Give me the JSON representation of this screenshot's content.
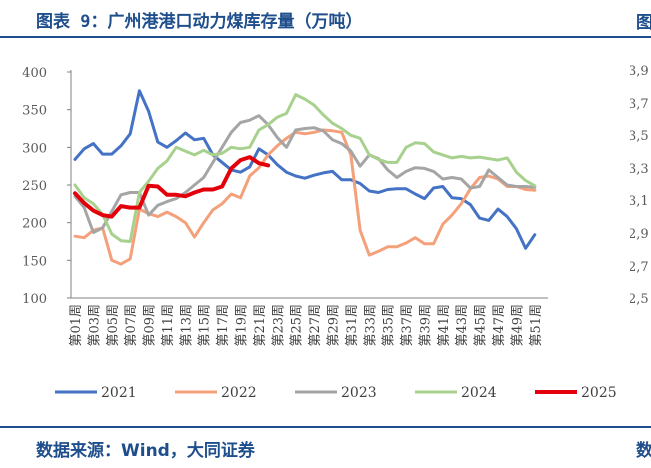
{
  "page": {
    "title": "图表 9：广州港港口动力煤库存量（万吨）",
    "source": "数据来源：Wind，大同证券"
  },
  "right_panel": {
    "title_fragment": "图",
    "source_fragment": "数",
    "ticks": [
      "3,9",
      "3,7",
      "3,5",
      "3,3",
      "3,1",
      "2,9",
      "2,7",
      "2,5"
    ]
  },
  "chart_data": {
    "type": "line",
    "title": "图表 9：广州港港口动力煤库存量（万吨）",
    "xlabel": "",
    "ylabel": "",
    "ylim": [
      100,
      400
    ],
    "yticks": [
      100,
      150,
      200,
      250,
      300,
      350,
      400
    ],
    "x": [
      "第01周",
      "第02周",
      "第03周",
      "第04周",
      "第05周",
      "第06周",
      "第07周",
      "第08周",
      "第09周",
      "第10周",
      "第11周",
      "第12周",
      "第13周",
      "第14周",
      "第15周",
      "第16周",
      "第17周",
      "第18周",
      "第19周",
      "第20周",
      "第21周",
      "第22周",
      "第23周",
      "第24周",
      "第25周",
      "第26周",
      "第27周",
      "第28周",
      "第29周",
      "第30周",
      "第31周",
      "第32周",
      "第33周",
      "第34周",
      "第35周",
      "第36周",
      "第37周",
      "第38周",
      "第39周",
      "第40周",
      "第41周",
      "第42周",
      "第43周",
      "第44周",
      "第45周",
      "第46周",
      "第47周",
      "第48周",
      "第49周",
      "第50周",
      "第51周",
      "第52周"
    ],
    "xticks": [
      "第01周",
      "第03周",
      "第05周",
      "第07周",
      "第09周",
      "第11周",
      "第13周",
      "第15周",
      "第17周",
      "第19周",
      "第21周",
      "第23周",
      "第25周",
      "第27周",
      "第29周",
      "第31周",
      "第33周",
      "第35周",
      "第37周",
      "第39周",
      "第41周",
      "第43周",
      "第45周",
      "第47周",
      "第49周",
      "第51周"
    ],
    "grid": false,
    "legend": "bottom",
    "series": [
      {
        "name": "2021",
        "color": "#4472c4",
        "width": 3,
        "values": [
          284,
          298,
          305,
          291,
          291,
          302,
          318,
          375,
          348,
          307,
          300,
          309,
          319,
          310,
          312,
          290,
          280,
          270,
          267,
          274,
          298,
          290,
          277,
          267,
          262,
          259,
          263,
          266,
          268,
          257,
          257,
          252,
          242,
          240,
          244,
          245,
          245,
          238,
          232,
          246,
          248,
          233,
          232,
          224,
          206,
          203,
          218,
          208,
          192,
          166,
          184,
          null
        ]
      },
      {
        "name": "2022",
        "color": "#f4a07a",
        "width": 3,
        "values": [
          182,
          180,
          190,
          193,
          150,
          145,
          152,
          218,
          212,
          208,
          214,
          208,
          200,
          181,
          200,
          217,
          225,
          238,
          233,
          262,
          273,
          290,
          302,
          312,
          320,
          318,
          320,
          323,
          322,
          320,
          290,
          190,
          157,
          162,
          168,
          168,
          173,
          180,
          172,
          172,
          198,
          210,
          225,
          245,
          260,
          262,
          258,
          248,
          248,
          244,
          243,
          null
        ]
      },
      {
        "name": "2023",
        "color": "#a5a5a5",
        "width": 3,
        "values": [
          235,
          220,
          187,
          193,
          215,
          237,
          240,
          240,
          210,
          223,
          228,
          232,
          240,
          250,
          260,
          280,
          300,
          320,
          333,
          336,
          342,
          330,
          313,
          300,
          323,
          325,
          326,
          322,
          310,
          305,
          295,
          275,
          290,
          285,
          270,
          260,
          268,
          273,
          272,
          268,
          258,
          260,
          258,
          246,
          248,
          270,
          260,
          250,
          248,
          248,
          247,
          null
        ]
      },
      {
        "name": "2024",
        "color": "#a9d18e",
        "width": 3,
        "values": [
          250,
          233,
          225,
          211,
          185,
          176,
          175,
          240,
          255,
          272,
          282,
          300,
          295,
          290,
          296,
          290,
          292,
          300,
          298,
          300,
          323,
          330,
          340,
          345,
          370,
          364,
          356,
          343,
          332,
          325,
          316,
          312,
          290,
          284,
          280,
          280,
          300,
          306,
          305,
          294,
          290,
          286,
          288,
          286,
          287,
          285,
          283,
          286,
          267,
          256,
          249,
          null
        ]
      },
      {
        "name": "2025",
        "color": "#e3000b",
        "width": 4,
        "values": [
          239,
          226,
          216,
          210,
          208,
          222,
          220,
          220,
          249,
          248,
          237,
          237,
          235,
          240,
          244,
          244,
          248,
          272,
          283,
          287,
          279,
          276,
          null,
          null,
          null,
          null,
          null,
          null,
          null,
          null,
          null,
          null,
          null,
          null,
          null,
          null,
          null,
          null,
          null,
          null,
          null,
          null,
          null,
          null,
          null,
          null,
          null,
          null,
          null,
          null,
          null,
          null
        ]
      }
    ]
  }
}
